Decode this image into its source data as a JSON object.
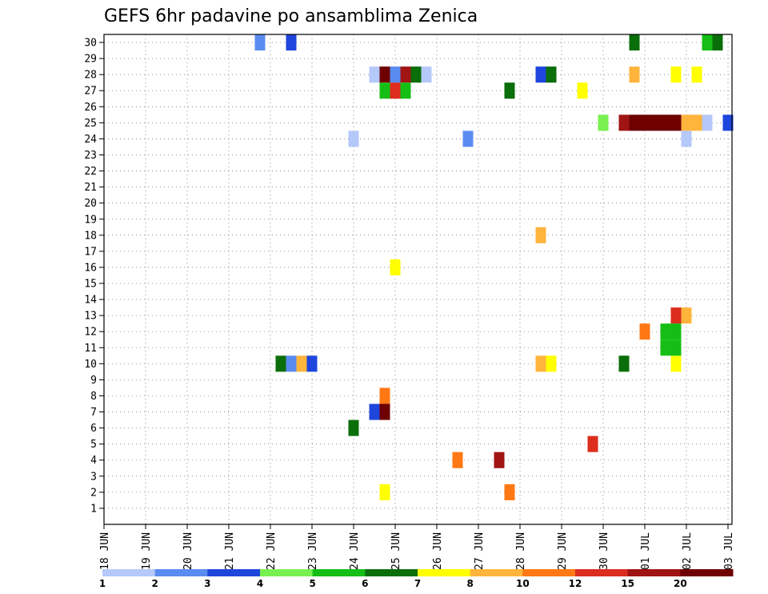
{
  "chart_data": {
    "type": "heatmap",
    "title": "GEFS 6hr padavine po ansamblima Zenica",
    "x_tick_labels": [
      "18 JUN",
      "19 JUN",
      "20 JUN",
      "21 JUN",
      "22 JUN",
      "23 JUN",
      "24 JUN",
      "25 JUN",
      "26 JUN",
      "27 JUN",
      "28 JUN",
      "29 JUN",
      "30 JUN",
      "01 JUL",
      "02 JUL",
      "03 JUL"
    ],
    "y_tick_labels": [
      "1",
      "2",
      "3",
      "4",
      "5",
      "6",
      "7",
      "8",
      "9",
      "10",
      "11",
      "12",
      "13",
      "14",
      "15",
      "16",
      "17",
      "18",
      "19",
      "20",
      "21",
      "22",
      "23",
      "24",
      "25",
      "26",
      "27",
      "28",
      "29",
      "30"
    ],
    "grid": true,
    "legend": "bottom",
    "colorbar": {
      "labels": [
        "1",
        "2",
        "3",
        "4",
        "5",
        "6",
        "7",
        "8",
        "10",
        "12",
        "15",
        "20"
      ],
      "colors": [
        "#b4c8fa",
        "#5a8cf0",
        "#1e46dc",
        "#78f050",
        "#14be14",
        "#0a6e0a",
        "#ffff00",
        "#ffb43c",
        "#ff7814",
        "#dc2d1e",
        "#a01414",
        "#6e0000"
      ]
    },
    "colors_by_level": {
      "1": "#b4c8fa",
      "2": "#5a8cf0",
      "3": "#1e46dc",
      "4": "#78f050",
      "5": "#14be14",
      "6": "#0a6e0a",
      "7": "#ffff00",
      "8": "#ffb43c",
      "10": "#ff7814",
      "12": "#dc2d1e",
      "15": "#a01414",
      "20": "#6e0000"
    },
    "cells": [
      {
        "date": "30 JUN 18Z",
        "member": 25,
        "value": 20
      },
      {
        "date": "01 JUL 00Z",
        "member": 25,
        "value": 20
      },
      {
        "date": "01 JUL 06Z",
        "member": 25,
        "value": 20
      },
      {
        "date": "01 JUL 12Z",
        "member": 25,
        "value": 20
      },
      {
        "date": "01 JUL 18Z",
        "member": 25,
        "value": 20
      },
      {
        "date": "30 JUN 12Z",
        "member": 25,
        "value": 15
      },
      {
        "date": "30 JUN 00Z",
        "member": 25,
        "value": 4
      },
      {
        "date": "02 JUL 00Z",
        "member": 25,
        "value": 8
      },
      {
        "date": "02 JUL 06Z",
        "member": 25,
        "value": 8
      },
      {
        "date": "02 JUL 12Z",
        "member": 25,
        "value": 1
      },
      {
        "date": "03 JUL 00Z",
        "member": 25,
        "value": 3
      },
      {
        "date": "24 JUN 18Z",
        "member": 28,
        "value": 20
      },
      {
        "date": "25 JUN 06Z",
        "member": 28,
        "value": 15
      },
      {
        "date": "25 JUN 12Z",
        "member": 28,
        "value": 6
      },
      {
        "date": "25 JUN 18Z",
        "member": 28,
        "value": 1
      },
      {
        "date": "25 JUN 00Z",
        "member": 28,
        "value": 2
      },
      {
        "date": "24 JUN 12Z",
        "member": 28,
        "value": 1
      },
      {
        "date": "28 JUN 12Z",
        "member": 28,
        "value": 3
      },
      {
        "date": "28 JUN 18Z",
        "member": 28,
        "value": 6
      },
      {
        "date": "30 JUN 18Z",
        "member": 28,
        "value": 8
      },
      {
        "date": "01 JUL 18Z",
        "member": 28,
        "value": 7
      },
      {
        "date": "02 JUL 06Z",
        "member": 28,
        "value": 7
      },
      {
        "date": "25 JUN 00Z",
        "member": 27,
        "value": 12
      },
      {
        "date": "24 JUN 18Z",
        "member": 27,
        "value": 5
      },
      {
        "date": "25 JUN 06Z",
        "member": 27,
        "value": 5
      },
      {
        "date": "27 JUN 18Z",
        "member": 27,
        "value": 6
      },
      {
        "date": "29 JUN 12Z",
        "member": 27,
        "value": 7
      },
      {
        "date": "22 JUN 06Z",
        "member": 10,
        "value": 6
      },
      {
        "date": "22 JUN 12Z",
        "member": 10,
        "value": 2
      },
      {
        "date": "22 JUN 18Z",
        "member": 10,
        "value": 8
      },
      {
        "date": "23 JUN 00Z",
        "member": 10,
        "value": 3
      },
      {
        "date": "28 JUN 12Z",
        "member": 10,
        "value": 8
      },
      {
        "date": "28 JUN 18Z",
        "member": 10,
        "value": 7
      },
      {
        "date": "01 JUL 18Z",
        "member": 10,
        "value": 7
      },
      {
        "date": "30 JUN 12Z",
        "member": 10,
        "value": 6
      },
      {
        "date": "24 JUN 18Z",
        "member": 8,
        "value": 10
      },
      {
        "date": "24 JUN 18Z",
        "member": 7,
        "value": 20
      },
      {
        "date": "24 JUN 12Z",
        "member": 7,
        "value": 3
      },
      {
        "date": "26 JUN 12Z",
        "member": 4,
        "value": 10
      },
      {
        "date": "27 JUN 12Z",
        "member": 4,
        "value": 15
      },
      {
        "date": "29 JUN 18Z",
        "member": 5,
        "value": 12
      },
      {
        "date": "01 JUL 18Z",
        "member": 13,
        "value": 12
      },
      {
        "date": "02 JUL 00Z",
        "member": 13,
        "value": 8
      },
      {
        "date": "01 JUL 00Z",
        "member": 12,
        "value": 10
      },
      {
        "date": "01 JUL 12Z",
        "member": 12,
        "value": 5
      },
      {
        "date": "01 JUL 18Z",
        "member": 12,
        "value": 5
      },
      {
        "date": "01 JUL 12Z",
        "member": 11,
        "value": 5
      },
      {
        "date": "01 JUL 18Z",
        "member": 11,
        "value": 5
      },
      {
        "date": "24 JUN 18Z",
        "member": 2,
        "value": 7
      },
      {
        "date": "27 JUN 18Z",
        "member": 2,
        "value": 10
      },
      {
        "date": "24 JUN 00Z",
        "member": 6,
        "value": 6
      },
      {
        "date": "24 JUN 00Z",
        "member": 24,
        "value": 1
      },
      {
        "date": "26 JUN 18Z",
        "member": 24,
        "value": 2
      },
      {
        "date": "02 JUL 00Z",
        "member": 24,
        "value": 1
      },
      {
        "date": "25 JUN 00Z",
        "member": 16,
        "value": 7
      },
      {
        "date": "28 JUN 12Z",
        "member": 18,
        "value": 8
      },
      {
        "date": "21 JUN 18Z",
        "member": 30,
        "value": 2
      },
      {
        "date": "22 JUN 12Z",
        "member": 30,
        "value": 3
      },
      {
        "date": "30 JUN 18Z",
        "member": 30,
        "value": 6
      },
      {
        "date": "02 JUL 12Z",
        "member": 30,
        "value": 5
      },
      {
        "date": "02 JUL 18Z",
        "member": 30,
        "value": 6
      }
    ]
  }
}
